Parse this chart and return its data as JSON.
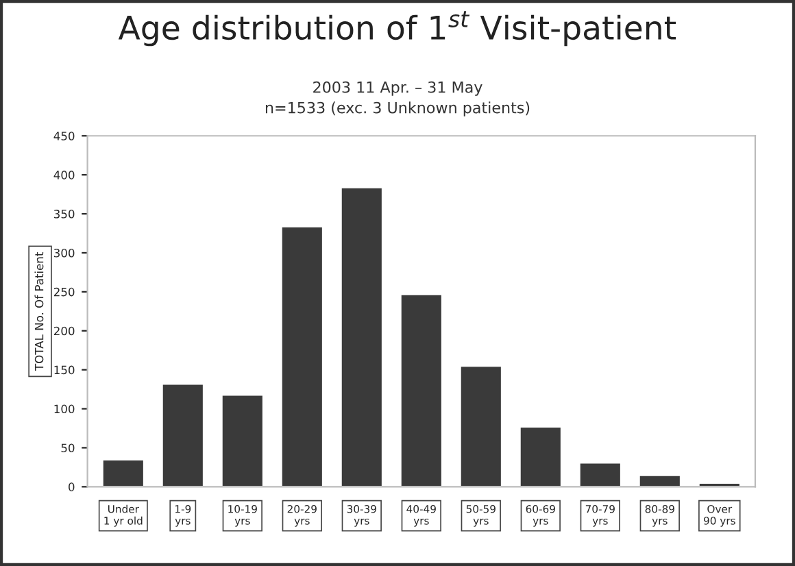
{
  "chart_data": {
    "type": "bar",
    "title": "Age distribution of 1$^{st}$ Visit-patient",
    "subtitle": "2003 11 Apr. – 31 May\nn=1533 (exc. 3 Unknown patients)",
    "ylabel": "TOTAL No. Of Patient",
    "categories": [
      "Under\n1 yr old",
      "1-9\nyrs",
      "10-19\nyrs",
      "20-29\nyrs",
      "30-39\nyrs",
      "40-49\nyrs",
      "50-59\nyrs",
      "60-69\nyrs",
      "70-79\nyrs",
      "80-89\nyrs",
      "Over\n90 yrs"
    ],
    "values": [
      35,
      132,
      118,
      334,
      384,
      247,
      155,
      77,
      31,
      15,
      5
    ],
    "color": "#3a3a3a",
    "ylim": [
      0,
      450
    ],
    "yticks": [
      0,
      50,
      100,
      150,
      200,
      250,
      300,
      350,
      400,
      450
    ],
    "grid": false
  }
}
